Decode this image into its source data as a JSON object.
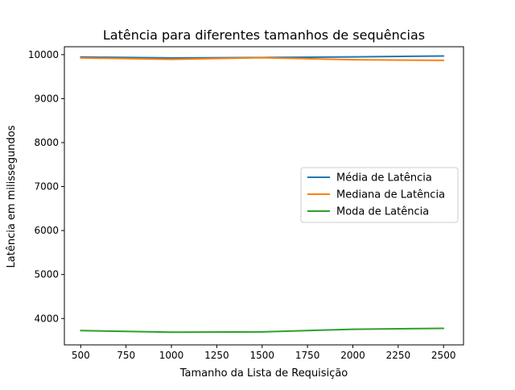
{
  "chart_data": {
    "type": "line",
    "title": "Latência para diferentes tamanhos de sequências",
    "xlabel": "Tamanho da Lista de Requisição",
    "ylabel": "Latência em milissegundos",
    "xlim": [
      410,
      2610
    ],
    "ylim": [
      3400,
      10180
    ],
    "xticks": [
      500,
      750,
      1000,
      1250,
      1500,
      1750,
      2000,
      2250,
      2500
    ],
    "yticks": [
      4000,
      5000,
      6000,
      7000,
      8000,
      9000,
      10000
    ],
    "x": [
      500,
      1000,
      1500,
      2000,
      2500
    ],
    "series": [
      {
        "name": "Média de Latência",
        "color": "#1f77b4",
        "values": [
          9945,
          9925,
          9935,
          9950,
          9970
        ]
      },
      {
        "name": "Mediana de Latência",
        "color": "#ff7f0e",
        "values": [
          9925,
          9895,
          9930,
          9885,
          9870
        ]
      },
      {
        "name": "Moda de Latência",
        "color": "#2ca02c",
        "values": [
          3725,
          3690,
          3695,
          3755,
          3775
        ]
      }
    ],
    "grid": false,
    "legend_position": "center-right"
  }
}
